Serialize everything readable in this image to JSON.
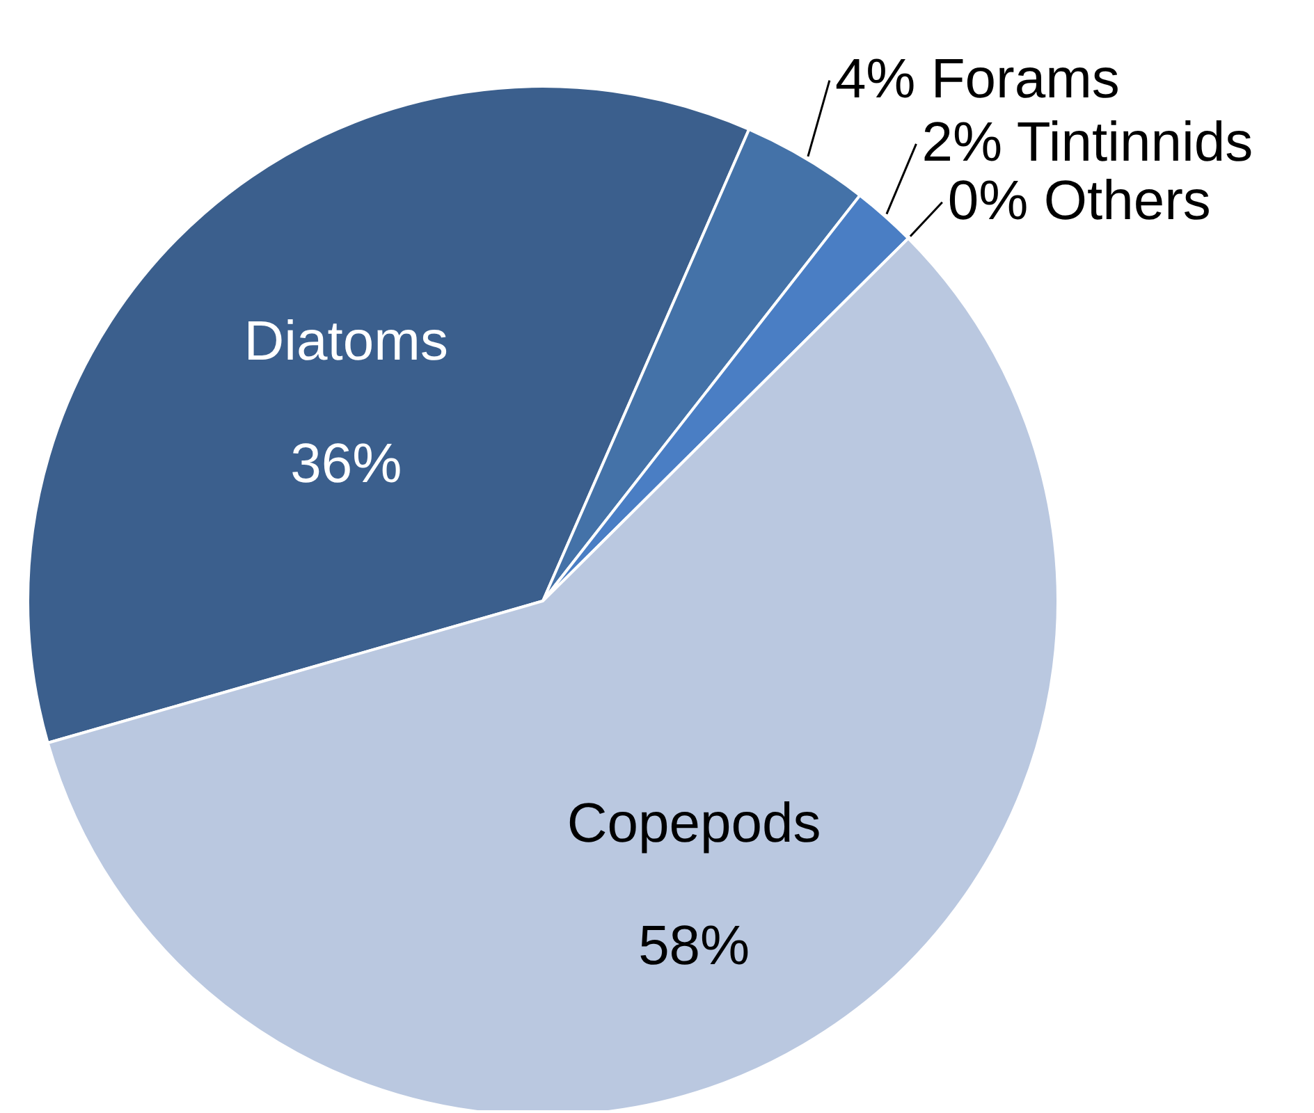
{
  "chart_data": {
    "type": "pie",
    "categories": [
      "Diatoms",
      "Forams",
      "Tintinnids",
      "Others",
      "Copepods"
    ],
    "values": [
      36,
      4,
      2,
      0,
      58
    ],
    "value_labels": [
      "36%",
      "4%",
      "2%",
      "0%",
      "58%"
    ],
    "colors": [
      "#3b5f8d",
      "#4472a8",
      "#4a7ec4",
      "#8fa9d4",
      "#bac8e0"
    ]
  }
}
